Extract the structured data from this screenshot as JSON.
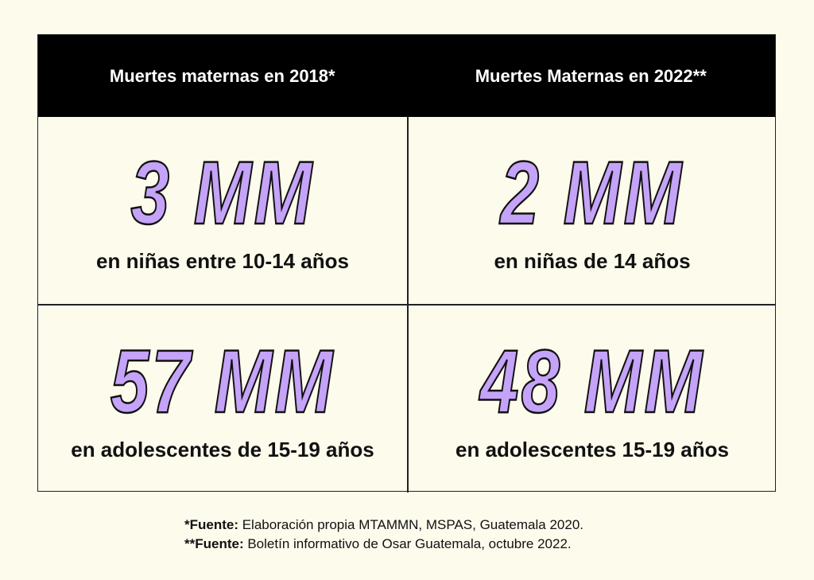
{
  "header": {
    "col1": "Muertes maternas en 2018*",
    "col2": "Muertes Maternas en 2022**"
  },
  "rows": [
    {
      "c1": {
        "value": "3 MM",
        "label": "en niñas entre 10-14 años"
      },
      "c2": {
        "value": "2 MM",
        "label": "en niñas de 14 años"
      }
    },
    {
      "c1": {
        "value": "57 MM",
        "label": "en adolescentes de 15-19 años"
      },
      "c2": {
        "value": "48 MM",
        "label": "en adolescentes 15-19 años"
      }
    }
  ],
  "notes": [
    {
      "prefix": "*Fuente:",
      "text": " Elaboración propia MTAMMN, MSPAS, Guatemala 2020."
    },
    {
      "prefix": "**Fuente:",
      "text": " Boletín informativo de Osar Guatemala, octubre 2022."
    }
  ],
  "colors": {
    "background": "#fdfbec",
    "header": "#000000",
    "accent": "#c4a3f8"
  }
}
